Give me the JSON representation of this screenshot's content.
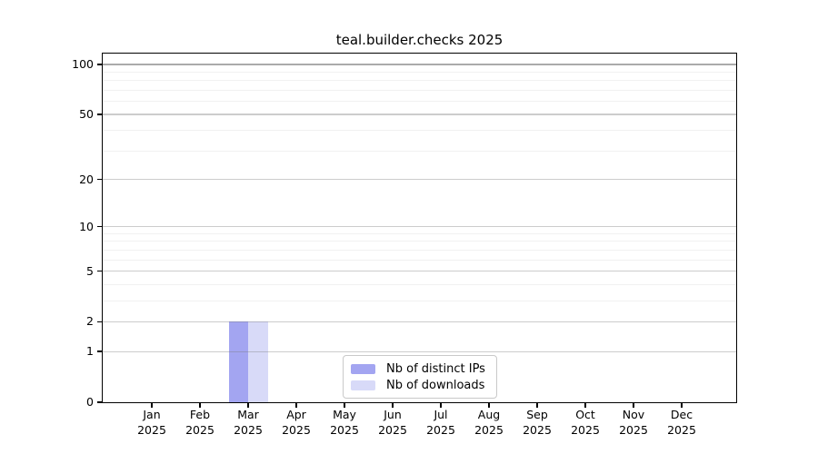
{
  "figure": {
    "background": "#ffffff"
  },
  "chart_data": {
    "type": "bar",
    "title": "teal.builder.checks 2025",
    "categories": [
      "Jan",
      "Feb",
      "Mar",
      "Apr",
      "May",
      "Jun",
      "Jul",
      "Aug",
      "Sep",
      "Oct",
      "Nov",
      "Dec"
    ],
    "year_label": "2025",
    "series": [
      {
        "name": "Nb of distinct IPs",
        "color": "#a3a5f1",
        "values": [
          0,
          0,
          2,
          0,
          0,
          0,
          0,
          0,
          0,
          0,
          0,
          0
        ]
      },
      {
        "name": "Nb of downloads",
        "color": "#d8daf8",
        "values": [
          0,
          0,
          2,
          0,
          0,
          0,
          0,
          0,
          0,
          0,
          0,
          0
        ]
      }
    ],
    "y_scale": "log1p",
    "y_ticks": [
      0,
      1,
      2,
      5,
      10,
      20,
      50,
      100
    ],
    "y_minor_gridlines": [
      3,
      4,
      6,
      7,
      8,
      9,
      30,
      40,
      60,
      70,
      80,
      90
    ],
    "ylim": [
      0,
      116
    ],
    "grid": "horizontal",
    "gridlines_on_top_of_bars": true,
    "legend_position": "inside-bottom-center",
    "colors": {
      "axis": "#000000",
      "text": "#000000",
      "grid_major": "rgba(120,120,120,0.38)",
      "grid_minor": "rgba(120,120,120,0.10)",
      "grid_top_line": "rgba(100,100,100,0.55)",
      "legend_border": "#c9c9c9"
    }
  }
}
